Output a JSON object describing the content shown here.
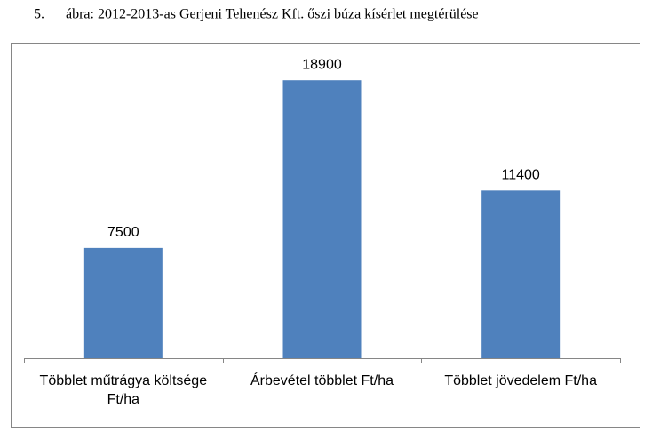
{
  "chart_data": {
    "type": "bar",
    "title": "5.      ábra: 2012-2013-as Gerjeni Tehenész Kft. őszi búza kísérlet megtérülése",
    "categories": [
      "Többlet műtrágya költsége Ft/ha",
      "Árbevétel többlet Ft/ha",
      "Többlet jövedelem Ft/ha"
    ],
    "values": [
      7500,
      18900,
      11400
    ],
    "color": "#4f81bd",
    "ylim": [
      0,
      20000
    ]
  }
}
